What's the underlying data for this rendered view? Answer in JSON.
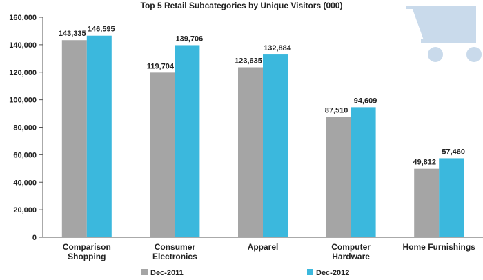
{
  "chart_data": {
    "type": "bar",
    "title": "Top 5 Retail Subcategories by Unique Visitors (000)",
    "xlabel": "",
    "ylabel": "",
    "categories": [
      [
        "Comparison",
        "Shopping"
      ],
      [
        "Consumer",
        "Electronics"
      ],
      [
        "Apparel"
      ],
      [
        "Computer",
        "Hardware"
      ],
      [
        "Home Furnishings"
      ]
    ],
    "series": [
      {
        "name": "Dec-2011",
        "color": "#a5a5a5",
        "values": [
          143335,
          119704,
          123635,
          87510,
          49812
        ]
      },
      {
        "name": "Dec-2012",
        "color": "#3bb8dd",
        "values": [
          146595,
          139706,
          132884,
          94609,
          57460
        ]
      }
    ],
    "data_labels": [
      [
        "143,335",
        "119,704",
        "123,635",
        "87,510",
        "49,812"
      ],
      [
        "146,595",
        "139,706",
        "132,884",
        "94,609",
        "57,460"
      ]
    ],
    "ylim": [
      0,
      160000
    ],
    "yticks": [
      0,
      20000,
      40000,
      60000,
      80000,
      100000,
      120000,
      140000,
      160000
    ],
    "ytick_labels": [
      "0",
      "20,000",
      "40,000",
      "60,000",
      "80,000",
      "100,000",
      "120,000",
      "140,000",
      "160,000"
    ],
    "grid": false,
    "legend_position": "bottom",
    "decoration": {
      "icon": "shopping-cart-icon",
      "color": "#c9daeb"
    }
  }
}
